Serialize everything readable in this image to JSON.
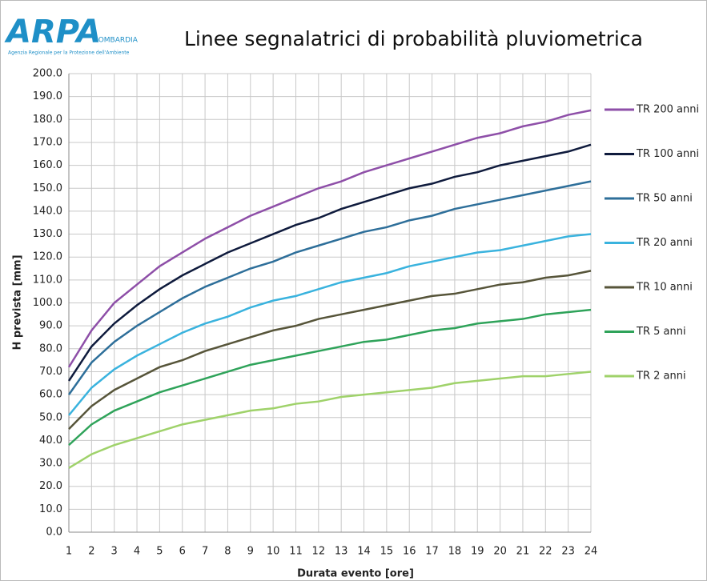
{
  "logo": {
    "mark": "ARPA",
    "region": "LOMBARDIA",
    "agency": "Agenzia Regionale per la Protezione dell'Ambiente"
  },
  "chart_data": {
    "type": "line",
    "title": "Linee segnalatrici di probabilità pluviometrica",
    "xlabel": "Durata evento [ore]",
    "ylabel": "H prevista [mm]",
    "x": [
      1,
      2,
      3,
      4,
      5,
      6,
      7,
      8,
      9,
      10,
      11,
      12,
      13,
      14,
      15,
      16,
      17,
      18,
      19,
      20,
      21,
      22,
      23,
      24
    ],
    "xlim": [
      1,
      24
    ],
    "xticks": [
      1,
      2,
      3,
      4,
      5,
      6,
      7,
      8,
      9,
      10,
      11,
      12,
      13,
      14,
      15,
      16,
      17,
      18,
      19,
      20,
      21,
      22,
      23,
      24
    ],
    "ylim": [
      0,
      200
    ],
    "yticks": [
      {
        "value": 0,
        "label": "0.0"
      },
      {
        "value": 10,
        "label": "10.0"
      },
      {
        "value": 20,
        "label": "20.0"
      },
      {
        "value": 30,
        "label": "30.0"
      },
      {
        "value": 40,
        "label": "40.0"
      },
      {
        "value": 50,
        "label": "50.0"
      },
      {
        "value": 60,
        "label": "60.0"
      },
      {
        "value": 70,
        "label": "70.0"
      },
      {
        "value": 80,
        "label": "80.0"
      },
      {
        "value": 90,
        "label": "90.0"
      },
      {
        "value": 100,
        "label": "100.0"
      },
      {
        "value": 110,
        "label": "110.0"
      },
      {
        "value": 120,
        "label": "120.0"
      },
      {
        "value": 130,
        "label": "130.0"
      },
      {
        "value": 140,
        "label": "140.0"
      },
      {
        "value": 150,
        "label": "150.0"
      },
      {
        "value": 160,
        "label": "160.0"
      },
      {
        "value": 170,
        "label": "170.0"
      },
      {
        "value": 180,
        "label": "180.0"
      },
      {
        "value": 190,
        "label": "190.0"
      },
      {
        "value": 200,
        "label": "200.0"
      }
    ],
    "grid": true,
    "legend": "right",
    "series": [
      {
        "name": "TR 200 anni",
        "color": "#8e4fa8",
        "values": [
          72,
          88,
          100,
          108,
          116,
          122,
          128,
          133,
          138,
          142,
          146,
          150,
          153,
          157,
          160,
          163,
          166,
          169,
          172,
          174,
          177,
          179,
          182,
          184
        ]
      },
      {
        "name": "TR 100 anni",
        "color": "#0f1b3d",
        "values": [
          66,
          81,
          91,
          99,
          106,
          112,
          117,
          122,
          126,
          130,
          134,
          137,
          141,
          144,
          147,
          150,
          152,
          155,
          157,
          160,
          162,
          164,
          166,
          169
        ]
      },
      {
        "name": "TR 50 anni",
        "color": "#2e6f9a",
        "values": [
          60,
          74,
          83,
          90,
          96,
          102,
          107,
          111,
          115,
          118,
          122,
          125,
          128,
          131,
          133,
          136,
          138,
          141,
          143,
          145,
          147,
          149,
          151,
          153
        ]
      },
      {
        "name": "TR 20 anni",
        "color": "#3ab3de",
        "values": [
          51,
          63,
          71,
          77,
          82,
          87,
          91,
          94,
          98,
          101,
          103,
          106,
          109,
          111,
          113,
          116,
          118,
          120,
          122,
          123,
          125,
          127,
          129,
          130
        ]
      },
      {
        "name": "TR 10 anni",
        "color": "#57553a",
        "values": [
          45,
          55,
          62,
          67,
          72,
          75,
          79,
          82,
          85,
          88,
          90,
          93,
          95,
          97,
          99,
          101,
          103,
          104,
          106,
          108,
          109,
          111,
          112,
          114
        ]
      },
      {
        "name": "TR 5 anni",
        "color": "#2fa35a",
        "values": [
          38,
          47,
          53,
          57,
          61,
          64,
          67,
          70,
          73,
          75,
          77,
          79,
          81,
          83,
          84,
          86,
          88,
          89,
          91,
          92,
          93,
          95,
          96,
          97
        ]
      },
      {
        "name": "TR 2 anni",
        "color": "#9fd26a",
        "values": [
          28,
          34,
          38,
          41,
          44,
          47,
          49,
          51,
          53,
          54,
          56,
          57,
          59,
          60,
          61,
          62,
          63,
          65,
          66,
          67,
          68,
          68,
          69,
          70
        ]
      }
    ]
  }
}
